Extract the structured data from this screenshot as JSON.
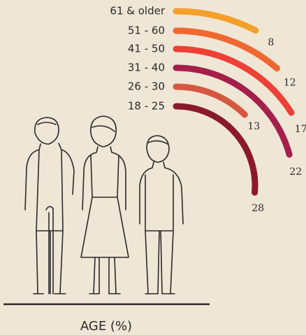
{
  "chart_data": {
    "type": "radial-arc",
    "title": "AGE (%)",
    "categories": [
      "61 & older",
      "51 - 60",
      "41 - 50",
      "31 - 40",
      "26 - 30",
      "18 - 25"
    ],
    "series": [
      {
        "values": [
          8,
          12,
          17,
          22,
          13,
          28
        ],
        "colors": [
          "#f4a02a",
          "#f06830",
          "#ee4036",
          "#a51f4b",
          "#d6573f",
          "#8a1a2b"
        ]
      }
    ]
  }
}
